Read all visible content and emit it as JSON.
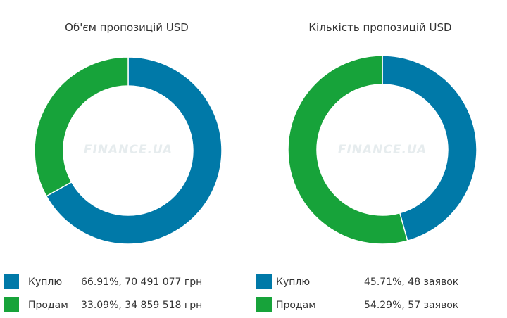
{
  "chart_data": [
    {
      "type": "pie",
      "title": "Об'єм пропозицій USD",
      "categories": [
        "Куплю",
        "Продам"
      ],
      "values": [
        66.91,
        33.09
      ],
      "value_labels": [
        "66.91%, 70 491 077 грн",
        "33.09%, 34 859 518 грн"
      ],
      "colors": [
        "#0079a8",
        "#17a33a"
      ],
      "donut": true,
      "watermark": "FINANCE.UA",
      "legend": "bottom"
    },
    {
      "type": "pie",
      "title": "Кількість пропозицій USD",
      "categories": [
        "Куплю",
        "Продам"
      ],
      "values": [
        45.71,
        54.29
      ],
      "value_labels": [
        "45.71%, 48 заявок",
        "54.29%, 57 заявок"
      ],
      "colors": [
        "#0079a8",
        "#17a33a"
      ],
      "donut": true,
      "watermark": "FINANCE.UA",
      "legend": "bottom"
    }
  ]
}
